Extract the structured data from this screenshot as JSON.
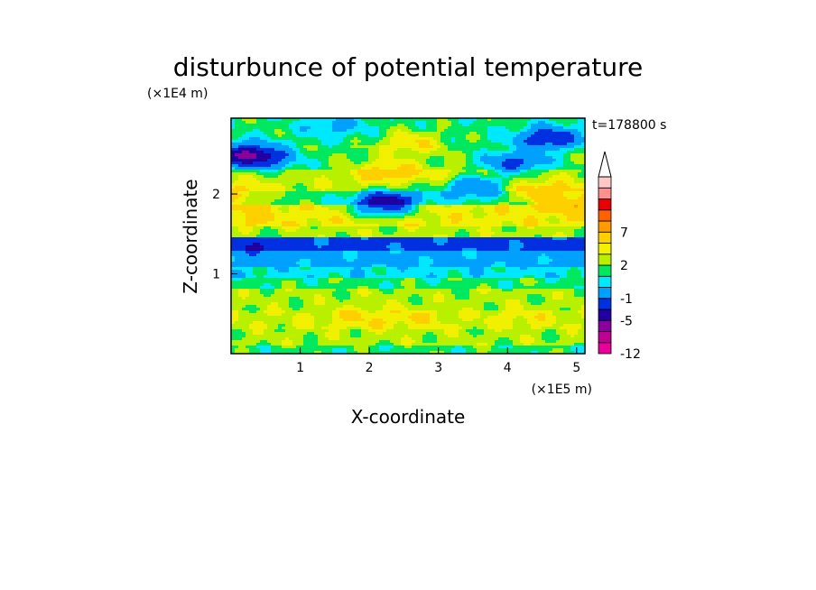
{
  "chart_data": {
    "type": "heatmap",
    "title": "disturbunce of potential temperature",
    "xlabel": "X-coordinate",
    "ylabel": "Z-coordinate",
    "x_unit": "(×1E5 m)",
    "y_unit": "(×1E4 m)",
    "time_label": "t=178800 s",
    "xlim": [
      0,
      5.12
    ],
    "ylim": [
      0,
      2.95
    ],
    "x_ticks": [
      "1",
      "2",
      "3",
      "4",
      "5"
    ],
    "y_ticks": [
      "1",
      "2"
    ],
    "x_tick_values": [
      1,
      2,
      3,
      4,
      5
    ],
    "y_tick_values": [
      1,
      2
    ],
    "colorbar": {
      "levels": [
        -12,
        -9,
        -7,
        -5,
        -3,
        -1,
        0,
        1,
        2,
        3,
        5,
        7,
        9,
        11
      ],
      "tick_labels": [
        "-12",
        "-5",
        "-1",
        "2",
        "7"
      ],
      "tick_values": [
        -12,
        -5,
        -1,
        2,
        7
      ],
      "colors": [
        "#e8009a",
        "#c00090",
        "#8a009c",
        "#2000a0",
        "#0030e0",
        "#00a0ff",
        "#00e8ff",
        "#00e860",
        "#b8f000",
        "#f0f000",
        "#ffd000",
        "#ff9a00",
        "#ff6000",
        "#e80000",
        "#ff9090",
        "#ffc8c8"
      ],
      "extends": "max"
    },
    "bands": [
      {
        "z": [
          0.0,
          0.1
        ],
        "value": 0.5
      },
      {
        "z": [
          0.1,
          0.3
        ],
        "value": 1.4
      },
      {
        "z": [
          0.3,
          0.55
        ],
        "value": 1.8
      },
      {
        "z": [
          0.55,
          0.8
        ],
        "value": 1.4
      },
      {
        "z": [
          0.8,
          0.95
        ],
        "value": 0.5
      },
      {
        "z": [
          0.95,
          1.1
        ],
        "value": -0.5
      },
      {
        "z": [
          1.1,
          1.3
        ],
        "value": -1.5
      },
      {
        "z": [
          1.3,
          1.45
        ],
        "value": -3.5
      },
      {
        "z": [
          1.45,
          1.6
        ],
        "value": 1.5
      },
      {
        "z": [
          1.6,
          1.85
        ],
        "value": 2.5
      },
      {
        "z": [
          1.85,
          2.05
        ],
        "value": 0.5
      },
      {
        "z": [
          2.05,
          2.3
        ],
        "value": 1.6
      },
      {
        "z": [
          2.3,
          2.6
        ],
        "value": 0.8
      },
      {
        "z": [
          2.6,
          2.95
        ],
        "value": 0.4
      }
    ],
    "features": [
      {
        "x": 2.3,
        "z": 2.3,
        "value": 3.5
      },
      {
        "x": 2.6,
        "z": 2.65,
        "value": 3.0
      },
      {
        "x": 2.0,
        "z": 2.1,
        "value": 2.2
      },
      {
        "x": 4.5,
        "z": 2.0,
        "value": 3.5
      },
      {
        "x": 2.3,
        "z": 1.95,
        "value": -2.5
      },
      {
        "x": 2.2,
        "z": 1.85,
        "value": -5.0
      },
      {
        "x": 3.5,
        "z": 2.1,
        "value": -3.0
      },
      {
        "x": 0.15,
        "z": 2.5,
        "value": -5.0
      },
      {
        "x": 0.5,
        "z": 2.45,
        "value": -3.5
      },
      {
        "x": 4.1,
        "z": 2.4,
        "value": -3.5
      },
      {
        "x": 4.6,
        "z": 2.7,
        "value": -5.0
      },
      {
        "x": 0.4,
        "z": 1.35,
        "value": -5.0
      },
      {
        "x": 3.7,
        "z": 1.35,
        "value": -3.5
      },
      {
        "x": 1.8,
        "z": 0.45,
        "value": 3.0
      },
      {
        "x": 2.6,
        "z": 0.45,
        "value": 3.0
      },
      {
        "x": 4.2,
        "z": 0.45,
        "value": 2.6
      },
      {
        "x": 0.2,
        "z": 1.7,
        "value": 3.5
      },
      {
        "x": 0.1,
        "z": 2.0,
        "value": 2.8
      },
      {
        "x": 5.0,
        "z": 1.9,
        "value": 3.0
      },
      {
        "x": 3.2,
        "z": 2.25,
        "value": 2.6
      },
      {
        "x": 5.05,
        "z": 1.3,
        "value": -4.0
      },
      {
        "x": 1.5,
        "z": 2.85,
        "value": -1.5
      }
    ]
  }
}
